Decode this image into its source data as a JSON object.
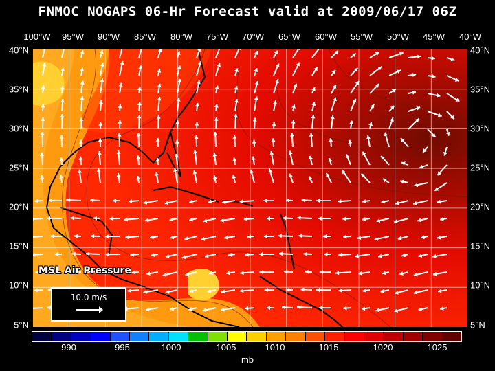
{
  "title": "FNMOC NOGAPS 06-Hr Forecast valid at 2009/06/17 06Z",
  "lon_labels": [
    "100°W",
    "95°W",
    "90°W",
    "85°W",
    "80°W",
    "75°W",
    "70°W",
    "65°W",
    "60°W",
    "55°W",
    "50°W",
    "45°W",
    "40°W"
  ],
  "lat_labels": [
    "40°N",
    "35°N",
    "30°N",
    "25°N",
    "20°N",
    "15°N",
    "10°N",
    "5°N"
  ],
  "variable_label": "MSL Air Pressure",
  "vector_scale_label": "10.0 m/s",
  "colorbar": {
    "colors": [
      "#000040",
      "#000080",
      "#0000c0",
      "#0000ff",
      "#2050ff",
      "#1080ff",
      "#00b0ff",
      "#00e0ff",
      "#00c000",
      "#80e000",
      "#ffff00",
      "#ffd000",
      "#ffa000",
      "#ff8000",
      "#ff5000",
      "#ff2000",
      "#ff0000",
      "#e00000",
      "#c00000",
      "#a00000",
      "#800000",
      "#600000"
    ],
    "labels": [
      "990",
      "995",
      "1000",
      "1005",
      "1010",
      "1015",
      "1020",
      "1025"
    ],
    "unit": "mb"
  }
}
